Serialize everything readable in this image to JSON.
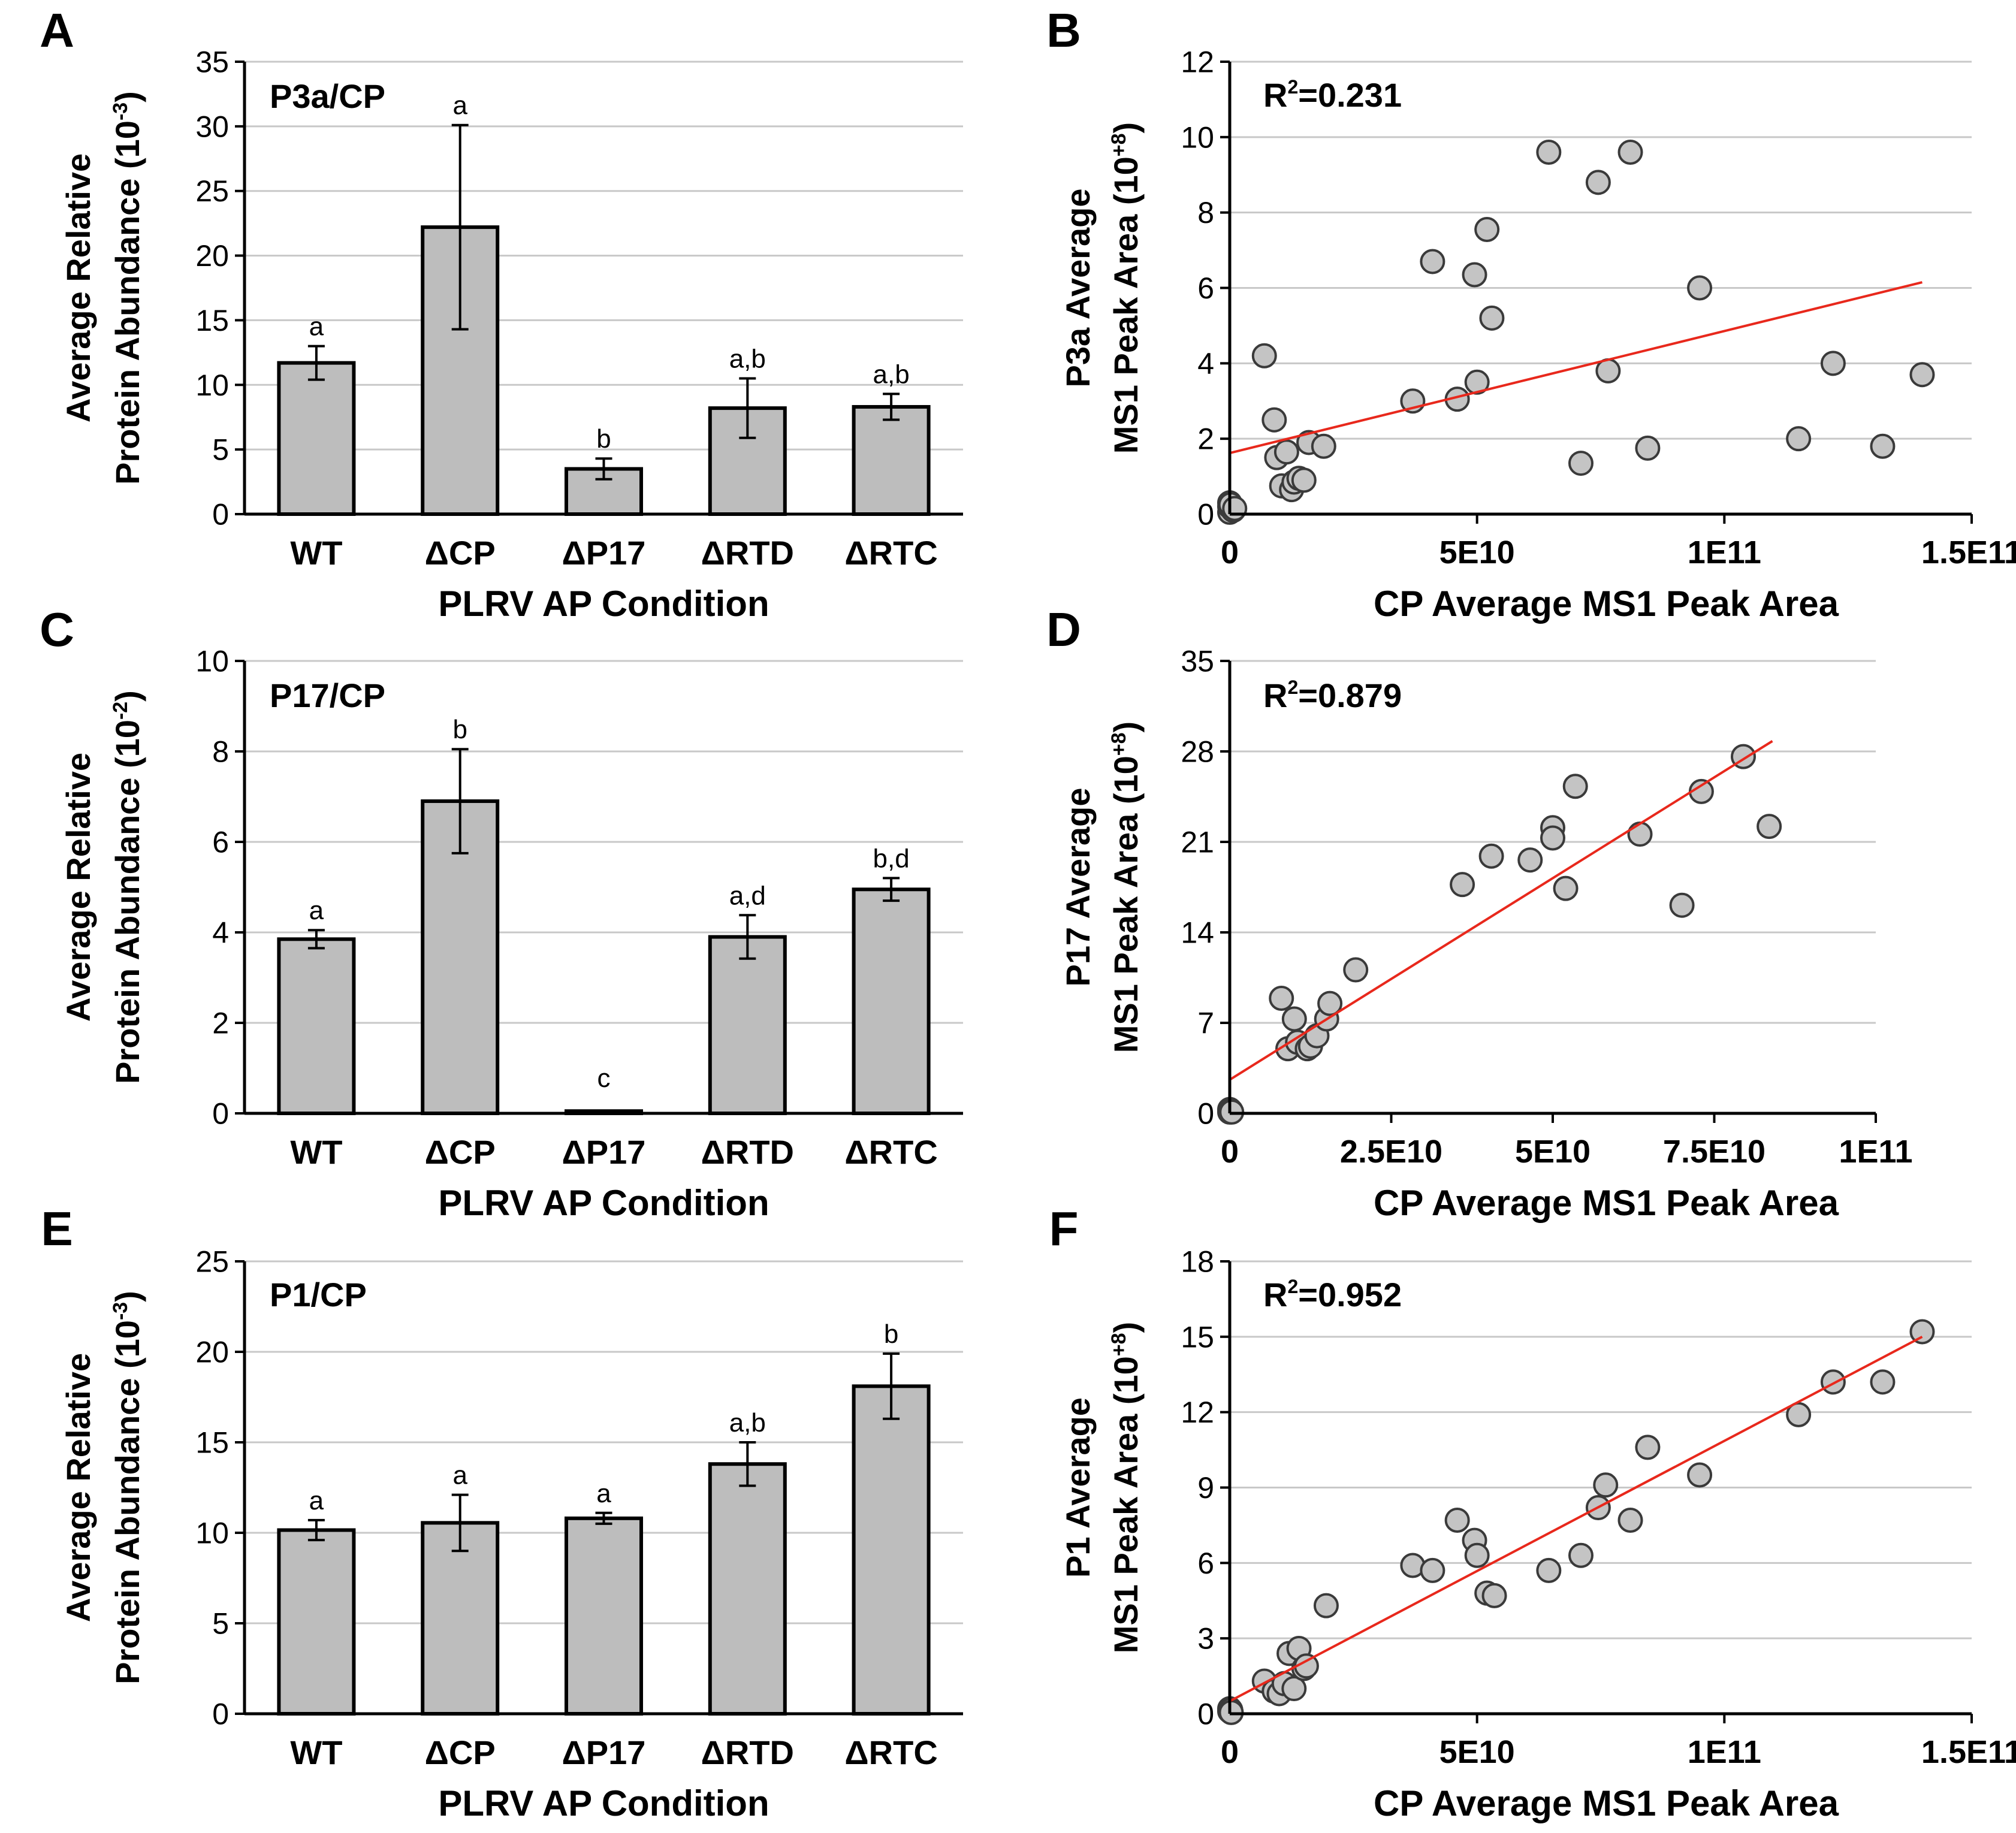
{
  "figure": {
    "colors": {
      "bar_fill": "#bdbdbd",
      "bar_stroke": "#000000",
      "point_fill": "#c4c4c4",
      "point_stroke": "#3a3a3a",
      "trendline": "#e8281c",
      "grid": "#c8c8c8"
    }
  },
  "chart_data": [
    {
      "panel": "A",
      "type": "bar",
      "ratio_label": "P3a/CP",
      "ylabel_line1": "Average Relative",
      "ylabel_line2": "Protein Abundance (10",
      "ylabel_exp": "-3",
      "ylabel_close": ")",
      "xlabel": "PLRV AP Condition",
      "categories": [
        "WT",
        "ΔCP",
        "ΔP17",
        "ΔRTD",
        "ΔRTC"
      ],
      "values": [
        11.7,
        22.2,
        3.5,
        8.2,
        8.3
      ],
      "errors": [
        1.3,
        7.9,
        0.8,
        2.3,
        1.0
      ],
      "letters": [
        "a",
        "a",
        "b",
        "a,b",
        "a,b"
      ],
      "ylim": [
        0,
        35
      ],
      "yticks": [
        0,
        5,
        10,
        15,
        20,
        25,
        30,
        35
      ],
      "grid": true
    },
    {
      "panel": "B",
      "type": "scatter",
      "r2_label": "=0.231",
      "ylabel_line1": "P3a Average",
      "ylabel_line2": "MS1 Peak Area (10",
      "ylabel_exp": "+8",
      "ylabel_close": ")",
      "xlabel": "CP Average MS1 Peak Area",
      "xlim": [
        0,
        150000000000.0
      ],
      "xticks": [
        0,
        50000000000.0,
        100000000000.0,
        150000000000.0
      ],
      "xtick_labels": [
        "0",
        "5E10",
        "1E11",
        "1.5E11"
      ],
      "ylim": [
        0,
        12
      ],
      "yticks": [
        0,
        2,
        4,
        6,
        8,
        10,
        12
      ],
      "trendline": {
        "x": [
          0,
          140000000000.0
        ],
        "y": [
          1.62,
          6.15
        ]
      },
      "x": [
        0,
        0,
        0,
        700000000.0,
        200000000.0,
        1000000000.0,
        7000000000.0,
        9000000000.0,
        9500000000.0,
        10500000000.0,
        11500000000.0,
        12500000000.0,
        13000000000.0,
        14000000000.0,
        15000000000.0,
        16000000000.0,
        19000000000.0,
        37000000000.0,
        41000000000.0,
        46000000000.0,
        49500000000.0,
        50000000000.0,
        52000000000.0,
        53000000000.0,
        64500000000.0,
        71000000000.0,
        74500000000.0,
        76500000000.0,
        81000000000.0,
        84500000000.0,
        95000000000.0,
        115000000000.0,
        122000000000.0,
        132000000000.0,
        140000000000.0
      ],
      "y": [
        0.05,
        0.3,
        0.2,
        0.1,
        0.25,
        0.15,
        4.2,
        2.5,
        1.5,
        0.75,
        1.65,
        0.65,
        0.85,
        0.95,
        0.9,
        1.9,
        1.8,
        3.0,
        6.7,
        3.05,
        6.35,
        3.5,
        7.55,
        5.2,
        9.6,
        1.35,
        8.8,
        3.8,
        9.6,
        1.75,
        6.0,
        2.0,
        4.0,
        1.8,
        3.7
      ],
      "grid": true
    },
    {
      "panel": "C",
      "type": "bar",
      "ratio_label": "P17/CP",
      "ylabel_line1": "Average Relative",
      "ylabel_line2": "Protein Abundance (10",
      "ylabel_exp": "-2",
      "ylabel_close": ")",
      "xlabel": "PLRV AP Condition",
      "categories": [
        "WT",
        "ΔCP",
        "ΔP17",
        "ΔRTD",
        "ΔRTC"
      ],
      "values": [
        3.85,
        6.9,
        0.05,
        3.9,
        4.95
      ],
      "errors": [
        0.2,
        1.15,
        0,
        0.48,
        0.25
      ],
      "letters": [
        "a",
        "b",
        "c",
        "a,d",
        "b,d"
      ],
      "ylim": [
        0,
        10
      ],
      "yticks": [
        0,
        2,
        4,
        6,
        8,
        10
      ],
      "grid": true
    },
    {
      "panel": "D",
      "type": "scatter",
      "r2_label": "=0.879",
      "ylabel_line1": "P17 Average",
      "ylabel_line2": "MS1 Peak Area (10",
      "ylabel_exp": "+8",
      "ylabel_close": ")",
      "xlabel": "CP Average MS1 Peak Area",
      "xlim": [
        0,
        100000000000.0
      ],
      "xticks": [
        0,
        25000000000.0,
        50000000000.0,
        75000000000.0,
        100000000000.0
      ],
      "xtick_labels": [
        "0",
        "2.5E10",
        "5E10",
        "7.5E10",
        "1E11"
      ],
      "ylim": [
        0,
        35
      ],
      "yticks": [
        0,
        7,
        14,
        21,
        28,
        35
      ],
      "trendline": {
        "x": [
          0,
          84000000000.0
        ],
        "y": [
          2.6,
          28.8
        ]
      },
      "x": [
        0,
        0,
        200000000.0,
        300000000.0,
        8000000000.0,
        9000000000.0,
        10000000000.0,
        10500000000.0,
        12000000000.0,
        12500000000.0,
        13500000000.0,
        15000000000.0,
        15500000000.0,
        19500000000.0,
        36000000000.0,
        40500000000.0,
        46500000000.0,
        50000000000.0,
        50000000000.0,
        52000000000.0,
        53500000000.0,
        63500000000.0,
        70000000000.0,
        73000000000.0,
        79500000000.0,
        83500000000.0
      ],
      "y": [
        0.1,
        0.3,
        0.2,
        0.1,
        8.9,
        5.0,
        7.3,
        5.5,
        5.0,
        5.2,
        6.0,
        7.3,
        8.5,
        11.1,
        17.7,
        19.9,
        19.6,
        22.1,
        21.3,
        17.4,
        25.3,
        21.6,
        16.1,
        24.9,
        27.6,
        22.2
      ],
      "grid": true
    },
    {
      "panel": "E",
      "type": "bar",
      "ratio_label": "P1/CP",
      "ylabel_line1": "Average Relative",
      "ylabel_line2": "Protein Abundance (10",
      "ylabel_exp": "-3",
      "ylabel_close": ")",
      "xlabel": "PLRV AP Condition",
      "categories": [
        "WT",
        "ΔCP",
        "ΔP17",
        "ΔRTD",
        "ΔRTC"
      ],
      "values": [
        10.15,
        10.55,
        10.8,
        13.8,
        18.1
      ],
      "errors": [
        0.55,
        1.55,
        0.3,
        1.2,
        1.8
      ],
      "letters": [
        "a",
        "a",
        "a",
        "a,b",
        "b"
      ],
      "ylim": [
        0,
        25
      ],
      "yticks": [
        0,
        5,
        10,
        15,
        20,
        25
      ],
      "grid": true
    },
    {
      "panel": "F",
      "type": "scatter",
      "r2_label": "=0.952",
      "ylabel_line1": "P1 Average",
      "ylabel_line2": "MS1 Peak Area (10",
      "ylabel_exp": "+8",
      "ylabel_close": ")",
      "xlabel": "CP Average MS1 Peak Area",
      "xlim": [
        0,
        150000000000.0
      ],
      "xticks": [
        0,
        50000000000.0,
        100000000000.0,
        150000000000.0
      ],
      "xtick_labels": [
        "0",
        "5E10",
        "1E11",
        "1.5E11"
      ],
      "ylim": [
        0,
        18
      ],
      "yticks": [
        0,
        3,
        6,
        9,
        12,
        15,
        18
      ],
      "trendline": {
        "x": [
          0,
          140000000000.0
        ],
        "y": [
          0.5,
          15.0
        ]
      },
      "x": [
        0,
        0,
        200000000.0,
        300000000.0,
        7000000000.0,
        9000000000.0,
        10000000000.0,
        11000000000.0,
        12000000000.0,
        13000000000.0,
        14000000000.0,
        15000000000.0,
        15500000000.0,
        19500000000.0,
        37000000000.0,
        41000000000.0,
        46000000000.0,
        49500000000.0,
        50000000000.0,
        52000000000.0,
        53500000000.0,
        64500000000.0,
        71000000000.0,
        74500000000.0,
        76000000000.0,
        81000000000.0,
        84500000000.0,
        95000000000.0,
        115000000000.0,
        122000000000.0,
        132000000000.0,
        140000000000.0
      ],
      "y": [
        0.1,
        0.2,
        0.15,
        0.05,
        1.3,
        0.9,
        0.8,
        1.2,
        2.4,
        1.0,
        2.6,
        1.8,
        1.9,
        4.3,
        5.9,
        5.7,
        7.7,
        6.9,
        6.3,
        4.8,
        4.7,
        5.7,
        6.3,
        8.2,
        9.1,
        7.7,
        10.6,
        9.5,
        11.9,
        13.2,
        13.2,
        15.2
      ],
      "grid": true
    }
  ]
}
